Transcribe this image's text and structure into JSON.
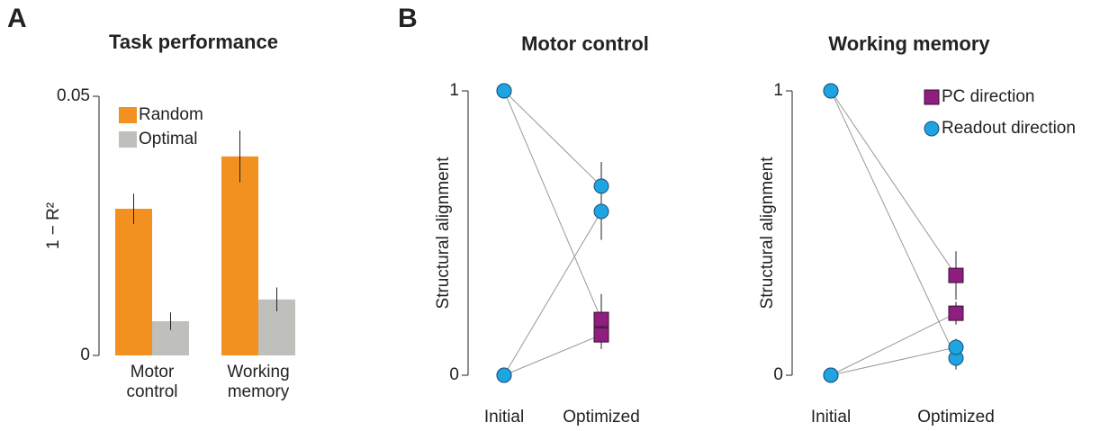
{
  "panel_labels": [
    "A",
    "B"
  ],
  "chart_data": [
    {
      "type": "bar",
      "title": "Task performance",
      "ylabel": "1 − R²",
      "categories": [
        "Motor control",
        "Working memory"
      ],
      "ylim": [
        0,
        0.05
      ],
      "yticks": [
        0,
        0.05
      ],
      "legend": "upper left",
      "series": [
        {
          "name": "Random",
          "color": "#f29120",
          "values": [
            0.0283,
            0.0384
          ],
          "errors": [
            0.0029,
            0.005
          ]
        },
        {
          "name": "Optimal",
          "color": "#bfbfbc",
          "values": [
            0.0066,
            0.0108
          ],
          "errors": [
            0.0017,
            0.0023
          ]
        }
      ]
    },
    {
      "type": "line",
      "title": "Motor control",
      "ylabel": "Structural alignment",
      "categories": [
        "Initial",
        "Optimized"
      ],
      "ylim": [
        0,
        1
      ],
      "yticks": [
        0,
        1
      ],
      "initial_marker": "circle",
      "initial_color": "#1ea4e0",
      "series": [
        {
          "color": "#1ea4e0",
          "marker": "circle",
          "lines": [
            {
              "values": [
                1,
                0.665
              ],
              "errors": [
                null,
                0.085
              ]
            },
            {
              "values": [
                0,
                0.576
              ],
              "errors": [
                null,
                0.1
              ]
            }
          ]
        },
        {
          "color": "#8e1f7f",
          "marker": "square",
          "lines": [
            {
              "values": [
                1,
                0.196
              ],
              "errors": [
                null,
                0.09
              ]
            },
            {
              "values": [
                0,
                0.142
              ],
              "errors": [
                null,
                0.05
              ]
            }
          ]
        }
      ]
    },
    {
      "type": "line",
      "title": "Working memory",
      "ylabel": "Structural alignment",
      "categories": [
        "Initial",
        "Optimized"
      ],
      "ylim": [
        0,
        1
      ],
      "yticks": [
        0,
        1
      ],
      "initial_marker": "circle",
      "initial_color": "#1ea4e0",
      "legend": "upper right",
      "series": [
        {
          "name": "PC direction",
          "color": "#8e1f7f",
          "marker": "square",
          "lines": [
            {
              "values": [
                1,
                0.351
              ],
              "errors": [
                null,
                0.085
              ]
            },
            {
              "values": [
                0,
                0.218
              ],
              "errors": [
                null,
                0.04
              ]
            }
          ]
        },
        {
          "name": "Readout direction",
          "color": "#1ea4e0",
          "marker": "circle",
          "lines": [
            {
              "values": [
                1,
                0.06
              ],
              "errors": [
                null,
                0.04
              ]
            },
            {
              "values": [
                0,
                0.098
              ],
              "errors": [
                null,
                0.03
              ]
            }
          ]
        }
      ]
    }
  ]
}
